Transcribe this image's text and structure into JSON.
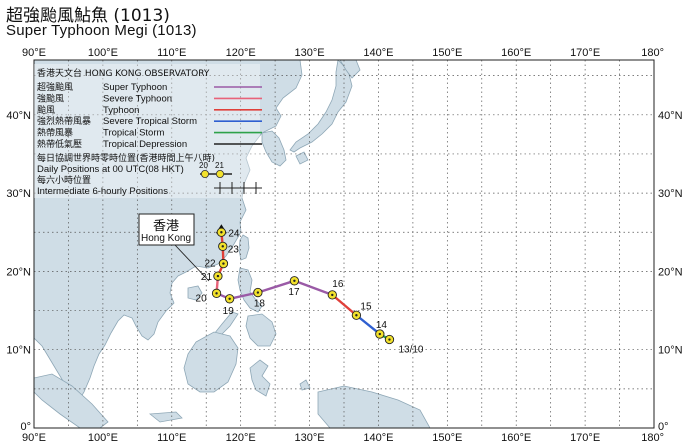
{
  "title_zh": "超強颱風鮎魚 (1013)",
  "title_en": "Super Typhoon Megi (1013)",
  "longitude_labels": [
    "90°E",
    "100°E",
    "110°E",
    "120°E",
    "130°E",
    "140°E",
    "150°E",
    "160°E",
    "170°E",
    "180°"
  ],
  "latitude_labels": [
    "0°",
    "10°N",
    "20°N",
    "30°N",
    "40°N"
  ],
  "legend": {
    "header": "香港天文台 HONG KONG OBSERVATORY",
    "categories": [
      {
        "zh": "超強颱風",
        "en": "Super Typhoon",
        "color": "#9a5aa6"
      },
      {
        "zh": "強颱風",
        "en": "Severe Typhoon",
        "color": "#e8637a"
      },
      {
        "zh": "颱風",
        "en": "Typhoon",
        "color": "#e0403a"
      },
      {
        "zh": "強烈熱帶風暴",
        "en": "Severe Tropical Storm",
        "color": "#2f5fd0"
      },
      {
        "zh": "熱帶風暴",
        "en": "Tropical Storm",
        "color": "#2ea24a"
      },
      {
        "zh": "熱帶低氣壓",
        "en": "Tropical Depression",
        "color": "#222222"
      }
    ],
    "daily_zh": "每日協調世界時零時位置(香港時間上午八時)",
    "daily_en": "Daily Positions at 00 UTC(08 HKT)",
    "daily_example_days": [
      "20",
      "21"
    ],
    "six_hourly_zh": "每六小時位置",
    "six_hourly_en": "Intermediate 6-hourly Positions"
  },
  "hong_kong": {
    "zh": "香港",
    "en": "Hong Kong"
  },
  "track": {
    "daily_positions": [
      {
        "label": "13/10",
        "lon": 141.6,
        "lat": 11.3
      },
      {
        "label": "14",
        "lon": 140.2,
        "lat": 12.0
      },
      {
        "label": "15",
        "lon": 136.8,
        "lat": 14.4
      },
      {
        "label": "16",
        "lon": 133.3,
        "lat": 17.0
      },
      {
        "label": "17",
        "lon": 127.8,
        "lat": 18.8
      },
      {
        "label": "18",
        "lon": 122.5,
        "lat": 17.3
      },
      {
        "label": "19",
        "lon": 118.4,
        "lat": 16.5
      },
      {
        "label": "20",
        "lon": 116.5,
        "lat": 17.2
      },
      {
        "label": "21",
        "lon": 116.7,
        "lat": 19.4
      },
      {
        "label": "22",
        "lon": 117.5,
        "lat": 21.0
      },
      {
        "label": "23",
        "lon": 117.4,
        "lat": 23.2
      },
      {
        "label": "24",
        "lon": 117.2,
        "lat": 25.0
      }
    ]
  }
}
